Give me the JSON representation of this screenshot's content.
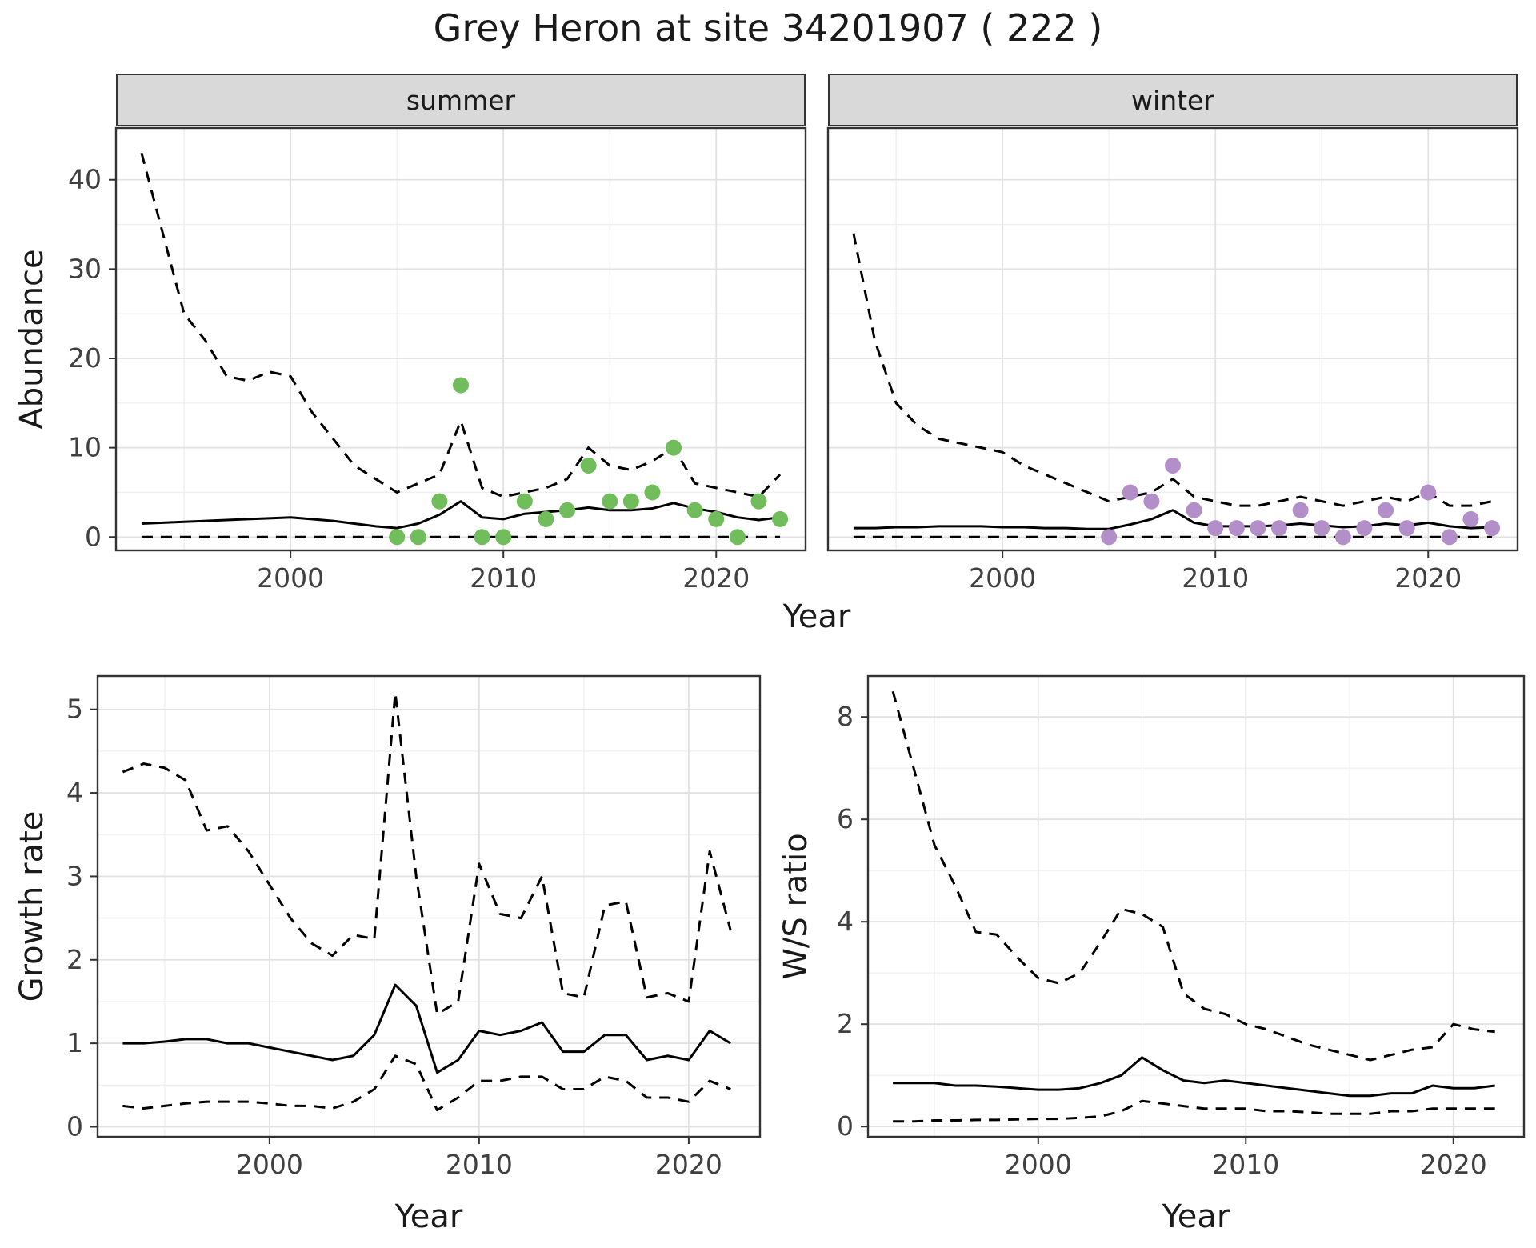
{
  "title": "Grey Heron at site 34201907 ( 222 )",
  "facets": [
    {
      "label": "summer"
    },
    {
      "label": "winter"
    }
  ],
  "axis_labels": {
    "abundance": "Abundance",
    "year_top": "Year",
    "growth": "Growth rate",
    "year_growth": "Year",
    "ws_ratio": "W/S ratio",
    "year_ws": "Year"
  },
  "colors": {
    "summer_points": "#71bd5c",
    "winter_points": "#b28fc8",
    "line": "#000000",
    "panel_border": "#333333",
    "strip_bg": "#d9d9d9",
    "grid_major": "#e2e2e2",
    "grid_minor": "#f0f0f0"
  },
  "chart_data": [
    {
      "type": "line",
      "facet": "summer",
      "ylabel": "Abundance",
      "xlabel": "Year",
      "xlim": [
        1991.8,
        2024.2
      ],
      "ylim": [
        -1.5,
        45.8
      ],
      "xticks": [
        2000,
        2010,
        2020
      ],
      "yticks": [
        0,
        10,
        20,
        30,
        40
      ],
      "minor_xticks": [
        1995,
        2005,
        2015
      ],
      "minor_yticks": [
        5,
        15,
        25,
        35
      ],
      "x": [
        1993,
        1994,
        1995,
        1996,
        1997,
        1998,
        1999,
        2000,
        2001,
        2002,
        2003,
        2004,
        2005,
        2006,
        2007,
        2008,
        2009,
        2010,
        2011,
        2012,
        2013,
        2014,
        2015,
        2016,
        2017,
        2018,
        2019,
        2020,
        2021,
        2022,
        2023
      ],
      "series": [
        {
          "name": "upper_ci",
          "style": "dashed",
          "color": "#000000",
          "values": [
            43,
            34,
            25,
            22,
            18,
            17.5,
            18.5,
            18,
            14,
            11,
            8,
            6.5,
            5,
            6,
            7,
            13,
            5.5,
            4.5,
            5,
            5.5,
            6.5,
            10,
            8,
            7.5,
            8.5,
            10,
            6,
            5.5,
            5,
            4.5,
            7
          ]
        },
        {
          "name": "lower_ci",
          "style": "dashed",
          "color": "#000000",
          "values": [
            0,
            0,
            0,
            0,
            0,
            0,
            0,
            0,
            0,
            0,
            0,
            0,
            0,
            0,
            0,
            0,
            0,
            0,
            0,
            0,
            0,
            0,
            0,
            0,
            0,
            0,
            0,
            0,
            0,
            0,
            0
          ]
        },
        {
          "name": "modelled_abundance",
          "style": "solid",
          "color": "#000000",
          "values": [
            1.5,
            1.6,
            1.7,
            1.8,
            1.9,
            2.0,
            2.1,
            2.2,
            2.0,
            1.8,
            1.5,
            1.2,
            1.0,
            1.5,
            2.5,
            4.0,
            2.2,
            2.0,
            2.6,
            2.8,
            3.0,
            3.3,
            3.0,
            3.0,
            3.2,
            3.8,
            3.2,
            2.8,
            2.2,
            1.9,
            2.2
          ]
        },
        {
          "name": "observed_counts",
          "style": "points",
          "color": "#71bd5c",
          "x": [
            2005,
            2006,
            2007,
            2008,
            2009,
            2010,
            2011,
            2012,
            2013,
            2014,
            2015,
            2016,
            2017,
            2018,
            2019,
            2020,
            2021,
            2022,
            2023
          ],
          "values": [
            0,
            0,
            4,
            17,
            0,
            0,
            4,
            2,
            3,
            8,
            4,
            4,
            5,
            10,
            3,
            2,
            0,
            4,
            2
          ]
        }
      ]
    },
    {
      "type": "line",
      "facet": "winter",
      "ylabel": "Abundance",
      "xlabel": "Year",
      "xlim": [
        1991.8,
        2024.2
      ],
      "ylim": [
        -1.5,
        45.8
      ],
      "xticks": [
        2000,
        2010,
        2020
      ],
      "yticks": [
        0,
        10,
        20,
        30,
        40
      ],
      "minor_xticks": [
        1995,
        2005,
        2015
      ],
      "minor_yticks": [
        5,
        15,
        25,
        35
      ],
      "x": [
        1993,
        1994,
        1995,
        1996,
        1997,
        1998,
        1999,
        2000,
        2001,
        2002,
        2003,
        2004,
        2005,
        2006,
        2007,
        2008,
        2009,
        2010,
        2011,
        2012,
        2013,
        2014,
        2015,
        2016,
        2017,
        2018,
        2019,
        2020,
        2021,
        2022,
        2023
      ],
      "series": [
        {
          "name": "upper_ci",
          "style": "dashed",
          "color": "#000000",
          "values": [
            34,
            22,
            15,
            12.5,
            11,
            10.5,
            10,
            9.5,
            8,
            7,
            6,
            5,
            4,
            4.5,
            5,
            6.5,
            4.5,
            4,
            3.5,
            3.5,
            4,
            4.5,
            4,
            3.5,
            4,
            4.5,
            4,
            5,
            3.5,
            3.5,
            4
          ]
        },
        {
          "name": "lower_ci",
          "style": "dashed",
          "color": "#000000",
          "values": [
            0,
            0,
            0,
            0,
            0,
            0,
            0,
            0,
            0,
            0,
            0,
            0,
            0,
            0,
            0,
            0,
            0,
            0,
            0,
            0,
            0,
            0,
            0,
            0,
            0,
            0,
            0,
            0,
            0,
            0,
            0
          ]
        },
        {
          "name": "modelled_abundance",
          "style": "solid",
          "color": "#000000",
          "values": [
            1.0,
            1.0,
            1.1,
            1.1,
            1.2,
            1.2,
            1.2,
            1.1,
            1.1,
            1.0,
            1.0,
            0.9,
            0.9,
            1.4,
            2.0,
            3.0,
            1.6,
            1.2,
            1.2,
            1.2,
            1.3,
            1.5,
            1.3,
            1.1,
            1.2,
            1.5,
            1.3,
            1.6,
            1.2,
            1.0,
            1.1
          ]
        },
        {
          "name": "observed_counts",
          "style": "points",
          "color": "#b28fc8",
          "x": [
            2005,
            2006,
            2007,
            2008,
            2009,
            2010,
            2011,
            2012,
            2013,
            2014,
            2015,
            2016,
            2017,
            2018,
            2019,
            2020,
            2021,
            2022,
            2023
          ],
          "values": [
            0,
            5,
            4,
            8,
            3,
            1,
            1,
            1,
            1,
            3,
            1,
            0,
            1,
            3,
            1,
            5,
            0,
            2,
            1
          ]
        }
      ]
    },
    {
      "type": "line",
      "facet": "",
      "ylabel": "Growth rate",
      "xlabel": "Year",
      "xlim": [
        1991.8,
        2023.4
      ],
      "ylim": [
        -0.12,
        5.4
      ],
      "xticks": [
        2000,
        2010,
        2020
      ],
      "yticks": [
        0,
        1,
        2,
        3,
        4,
        5
      ],
      "minor_xticks": [
        1995,
        2005,
        2015
      ],
      "minor_yticks": [
        0.5,
        1.5,
        2.5,
        3.5,
        4.5
      ],
      "x": [
        1993,
        1994,
        1995,
        1996,
        1997,
        1998,
        1999,
        2000,
        2001,
        2002,
        2003,
        2004,
        2005,
        2006,
        2007,
        2008,
        2009,
        2010,
        2011,
        2012,
        2013,
        2014,
        2015,
        2016,
        2017,
        2018,
        2019,
        2020,
        2021,
        2022
      ],
      "series": [
        {
          "name": "upper_ci",
          "style": "dashed",
          "color": "#000000",
          "values": [
            4.25,
            4.35,
            4.3,
            4.15,
            3.55,
            3.6,
            3.3,
            2.9,
            2.5,
            2.2,
            2.05,
            2.3,
            2.25,
            5.2,
            3.0,
            1.35,
            1.5,
            3.15,
            2.55,
            2.5,
            3.0,
            1.6,
            1.55,
            2.65,
            2.7,
            1.55,
            1.6,
            1.5,
            3.3,
            2.35
          ]
        },
        {
          "name": "lower_ci",
          "style": "dashed",
          "color": "#000000",
          "values": [
            0.25,
            0.22,
            0.25,
            0.28,
            0.3,
            0.3,
            0.3,
            0.28,
            0.25,
            0.25,
            0.22,
            0.3,
            0.45,
            0.85,
            0.75,
            0.2,
            0.35,
            0.55,
            0.55,
            0.6,
            0.6,
            0.45,
            0.45,
            0.6,
            0.55,
            0.35,
            0.35,
            0.3,
            0.55,
            0.45
          ]
        },
        {
          "name": "growth_rate",
          "style": "solid",
          "color": "#000000",
          "values": [
            1.0,
            1.0,
            1.02,
            1.05,
            1.05,
            1.0,
            1.0,
            0.95,
            0.9,
            0.85,
            0.8,
            0.85,
            1.1,
            1.7,
            1.45,
            0.65,
            0.8,
            1.15,
            1.1,
            1.15,
            1.25,
            0.9,
            0.9,
            1.1,
            1.1,
            0.8,
            0.85,
            0.8,
            1.15,
            1.0
          ]
        }
      ]
    },
    {
      "type": "line",
      "facet": "",
      "ylabel": "W/S ratio",
      "xlabel": "Year",
      "xlim": [
        1991.8,
        2023.4
      ],
      "ylim": [
        -0.2,
        8.8
      ],
      "xticks": [
        2000,
        2010,
        2020
      ],
      "yticks": [
        0,
        2,
        4,
        6,
        8
      ],
      "minor_xticks": [
        1995,
        2005,
        2015
      ],
      "minor_yticks": [
        1,
        3,
        5,
        7
      ],
      "x": [
        1993,
        1994,
        1995,
        1996,
        1997,
        1998,
        1999,
        2000,
        2001,
        2002,
        2003,
        2004,
        2005,
        2006,
        2007,
        2008,
        2009,
        2010,
        2011,
        2012,
        2013,
        2014,
        2015,
        2016,
        2017,
        2018,
        2019,
        2020,
        2021,
        2022
      ],
      "series": [
        {
          "name": "upper_ci",
          "style": "dashed",
          "color": "#000000",
          "values": [
            8.5,
            7.0,
            5.5,
            4.7,
            3.8,
            3.75,
            3.3,
            2.9,
            2.8,
            3.0,
            3.6,
            4.25,
            4.15,
            3.9,
            2.6,
            2.3,
            2.2,
            2.0,
            1.9,
            1.75,
            1.6,
            1.5,
            1.4,
            1.3,
            1.4,
            1.5,
            1.55,
            2.0,
            1.9,
            1.85
          ]
        },
        {
          "name": "lower_ci",
          "style": "dashed",
          "color": "#000000",
          "values": [
            0.1,
            0.1,
            0.12,
            0.12,
            0.13,
            0.13,
            0.14,
            0.15,
            0.15,
            0.17,
            0.2,
            0.3,
            0.5,
            0.45,
            0.4,
            0.35,
            0.35,
            0.35,
            0.3,
            0.3,
            0.28,
            0.25,
            0.25,
            0.25,
            0.3,
            0.3,
            0.35,
            0.35,
            0.35,
            0.35
          ]
        },
        {
          "name": "ws_ratio",
          "style": "solid",
          "color": "#000000",
          "values": [
            0.85,
            0.85,
            0.85,
            0.8,
            0.8,
            0.78,
            0.75,
            0.72,
            0.72,
            0.75,
            0.85,
            1.0,
            1.35,
            1.1,
            0.9,
            0.85,
            0.9,
            0.85,
            0.8,
            0.75,
            0.7,
            0.65,
            0.6,
            0.6,
            0.65,
            0.65,
            0.8,
            0.75,
            0.75,
            0.8
          ]
        }
      ]
    }
  ]
}
